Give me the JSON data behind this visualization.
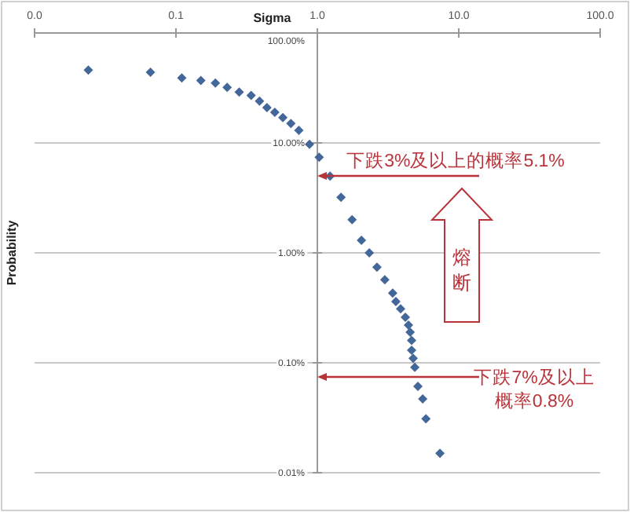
{
  "chart_data": {
    "type": "scatter",
    "xlabel": "Sigma",
    "ylabel": "Probability",
    "x": [
      0.024,
      0.066,
      0.11,
      0.15,
      0.19,
      0.23,
      0.28,
      0.34,
      0.39,
      0.44,
      0.5,
      0.57,
      0.65,
      0.74,
      0.88,
      1.03,
      1.23,
      1.47,
      1.76,
      2.05,
      2.33,
      2.64,
      3.0,
      3.41,
      3.59,
      3.88,
      4.19,
      4.41,
      4.53,
      4.64,
      4.64,
      4.76,
      4.89,
      5.14,
      5.56,
      5.86,
      7.36
    ],
    "values": [
      46,
      44,
      39,
      37,
      35,
      32,
      29,
      27,
      24,
      21,
      19,
      17,
      15,
      13,
      9.7,
      7.4,
      5.0,
      3.2,
      2.0,
      1.3,
      1.0,
      0.74,
      0.57,
      0.43,
      0.36,
      0.31,
      0.26,
      0.22,
      0.19,
      0.16,
      0.13,
      0.11,
      0.091,
      0.061,
      0.047,
      0.031,
      0.015
    ],
    "color": "#44679a",
    "marker": "diamond",
    "log": "xy",
    "grid": "y",
    "xlim": [
      0.01,
      100
    ],
    "ylim": [
      0.01,
      100
    ],
    "xticks": [
      {
        "value": 0.01,
        "label": "0.0"
      },
      {
        "value": 0.1,
        "label": "0.1"
      },
      {
        "value": 1,
        "label": "1.0"
      },
      {
        "value": 10,
        "label": "10.0"
      },
      {
        "value": 100,
        "label": "100.0"
      }
    ],
    "yticks": [
      {
        "value": 100,
        "label": "100.00%"
      },
      {
        "value": 10,
        "label": "10.00%"
      },
      {
        "value": 1,
        "label": "1.00%"
      },
      {
        "value": 0.1,
        "label": "0.10%"
      },
      {
        "value": 0.01,
        "label": "0.01%"
      }
    ],
    "annotations": [
      "下跌3%及以上的概率5.1%",
      "下跌7%及以上",
      "概率0.8%",
      "熔断"
    ]
  }
}
